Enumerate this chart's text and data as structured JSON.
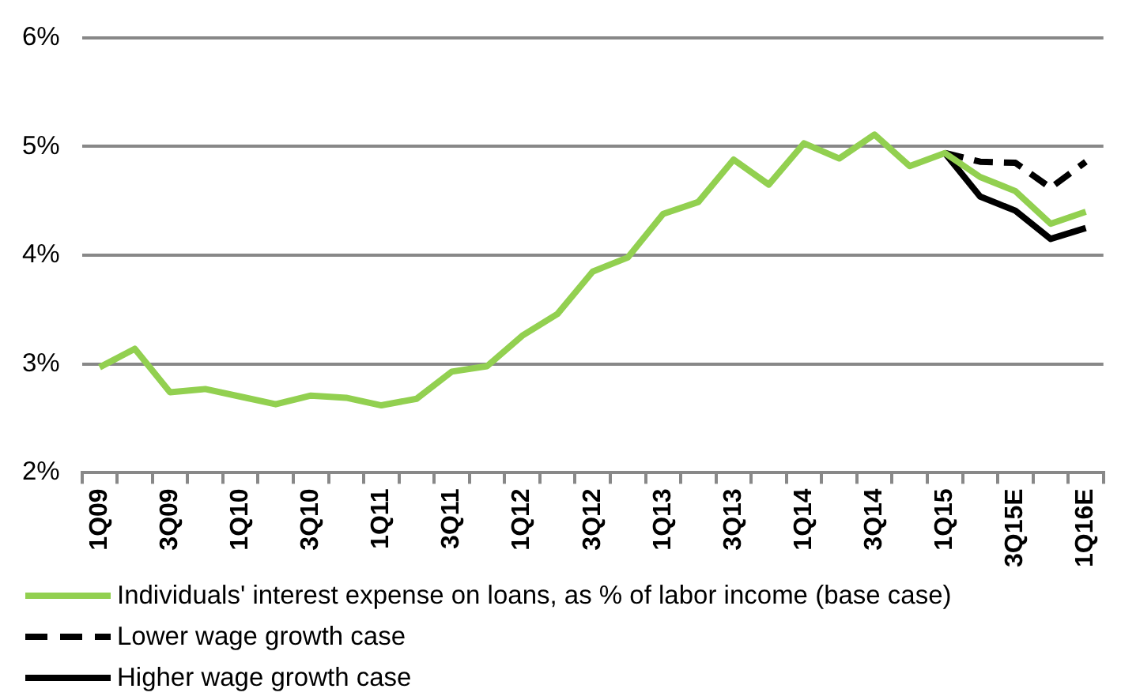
{
  "chart_data": {
    "type": "line",
    "categories": [
      "1Q09",
      null,
      "3Q09",
      null,
      "1Q10",
      null,
      "3Q10",
      null,
      "1Q11",
      null,
      "3Q11",
      null,
      "1Q12",
      null,
      "3Q12",
      null,
      "1Q13",
      null,
      "3Q13",
      null,
      "1Q14",
      null,
      "3Q14",
      null,
      "1Q15",
      null,
      "3Q15E",
      null,
      "1Q16E"
    ],
    "series": [
      {
        "name": "Individuals' interest expense on loans, as % of labor income (base case)",
        "color": "#92d050",
        "line_style": "solid",
        "values": [
          2.97,
          3.14,
          2.74,
          2.77,
          2.7,
          2.63,
          2.71,
          2.69,
          2.62,
          2.68,
          2.93,
          2.98,
          3.26,
          3.46,
          3.85,
          3.98,
          4.38,
          4.49,
          4.88,
          4.65,
          5.03,
          4.89,
          5.11,
          4.82,
          4.94,
          4.72,
          4.59,
          4.29,
          4.4
        ]
      },
      {
        "name": "Lower wage growth case",
        "color": "#000000",
        "line_style": "dashed",
        "values": [
          null,
          null,
          null,
          null,
          null,
          null,
          null,
          null,
          null,
          null,
          null,
          null,
          null,
          null,
          null,
          null,
          null,
          null,
          null,
          null,
          null,
          null,
          null,
          null,
          4.94,
          4.86,
          4.85,
          4.62,
          4.86
        ]
      },
      {
        "name": "Higher wage growth case",
        "color": "#000000",
        "line_style": "solid",
        "values": [
          null,
          null,
          null,
          null,
          null,
          null,
          null,
          null,
          null,
          null,
          null,
          null,
          null,
          null,
          null,
          null,
          null,
          null,
          null,
          null,
          null,
          null,
          null,
          null,
          4.94,
          4.54,
          4.41,
          4.15,
          4.25
        ]
      }
    ],
    "ylim": [
      2,
      6
    ],
    "yticks": [
      {
        "value": 2,
        "label": "2%"
      },
      {
        "value": 3,
        "label": "3%"
      },
      {
        "value": 4,
        "label": "4%"
      },
      {
        "value": 5,
        "label": "5%"
      },
      {
        "value": 6,
        "label": "6%"
      }
    ],
    "grid": "y",
    "legend": "bottom",
    "marker": "none"
  }
}
